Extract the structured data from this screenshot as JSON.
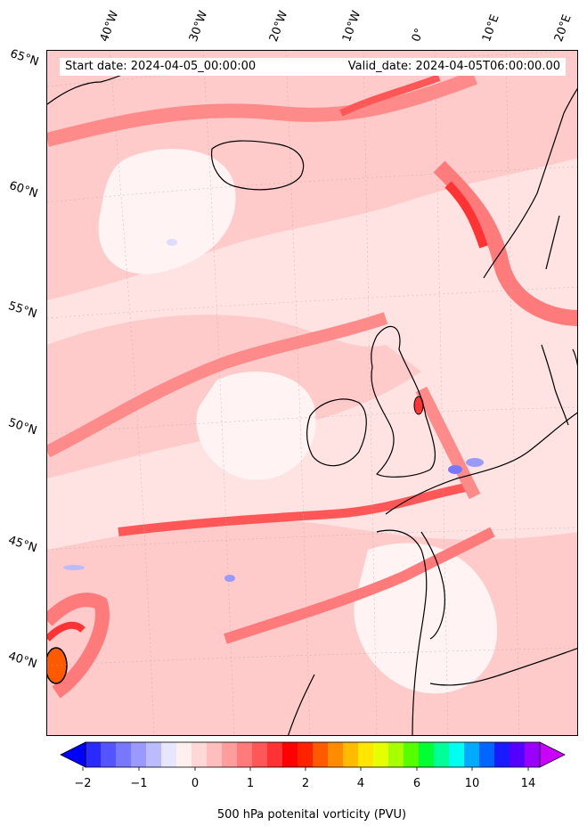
{
  "header": {
    "start_date": "Start date: 2024-04-05_00:00:00",
    "valid_date": "Valid_date: 2024-04-05T06:00:00.00"
  },
  "longitude_labels": [
    "40°W",
    "30°W",
    "20°W",
    "10°W",
    "0°",
    "10°E",
    "20°E"
  ],
  "latitude_labels": [
    "65°N",
    "60°N",
    "55°N",
    "50°N",
    "45°N",
    "40°N"
  ],
  "colorbar": {
    "label": "500 hPa potenital vorticity (PVU)",
    "tick_labels": [
      "−2",
      "−1",
      "0",
      "1",
      "2",
      "4",
      "6",
      "10",
      "14"
    ],
    "colors": [
      "#0000ff",
      "#2a2aff",
      "#5555ff",
      "#7777ff",
      "#9999ff",
      "#bbbbff",
      "#e6e6ff",
      "#ffefef",
      "#ffd7d7",
      "#ffbdbd",
      "#ff9c9c",
      "#ff7a7a",
      "#ff5757",
      "#ff3333",
      "#ff0000",
      "#ff2200",
      "#ff5a00",
      "#ff8c00",
      "#ffbb00",
      "#ffe600",
      "#e6ff00",
      "#a8ff00",
      "#55ff00",
      "#00ff33",
      "#00ff99",
      "#00ffee",
      "#00aaff",
      "#0066ff",
      "#1a1aff",
      "#5500ff",
      "#9900ff",
      "#cc00ff"
    ]
  }
}
